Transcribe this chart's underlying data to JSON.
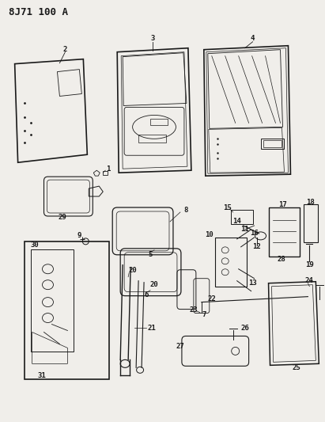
{
  "title": "8J71 100 A",
  "bg_color": "#f0eeea",
  "fig_width": 4.11,
  "fig_height": 5.33,
  "dpi": 100,
  "line_color": "#1a1a1a",
  "label_fontsize": 6.5
}
